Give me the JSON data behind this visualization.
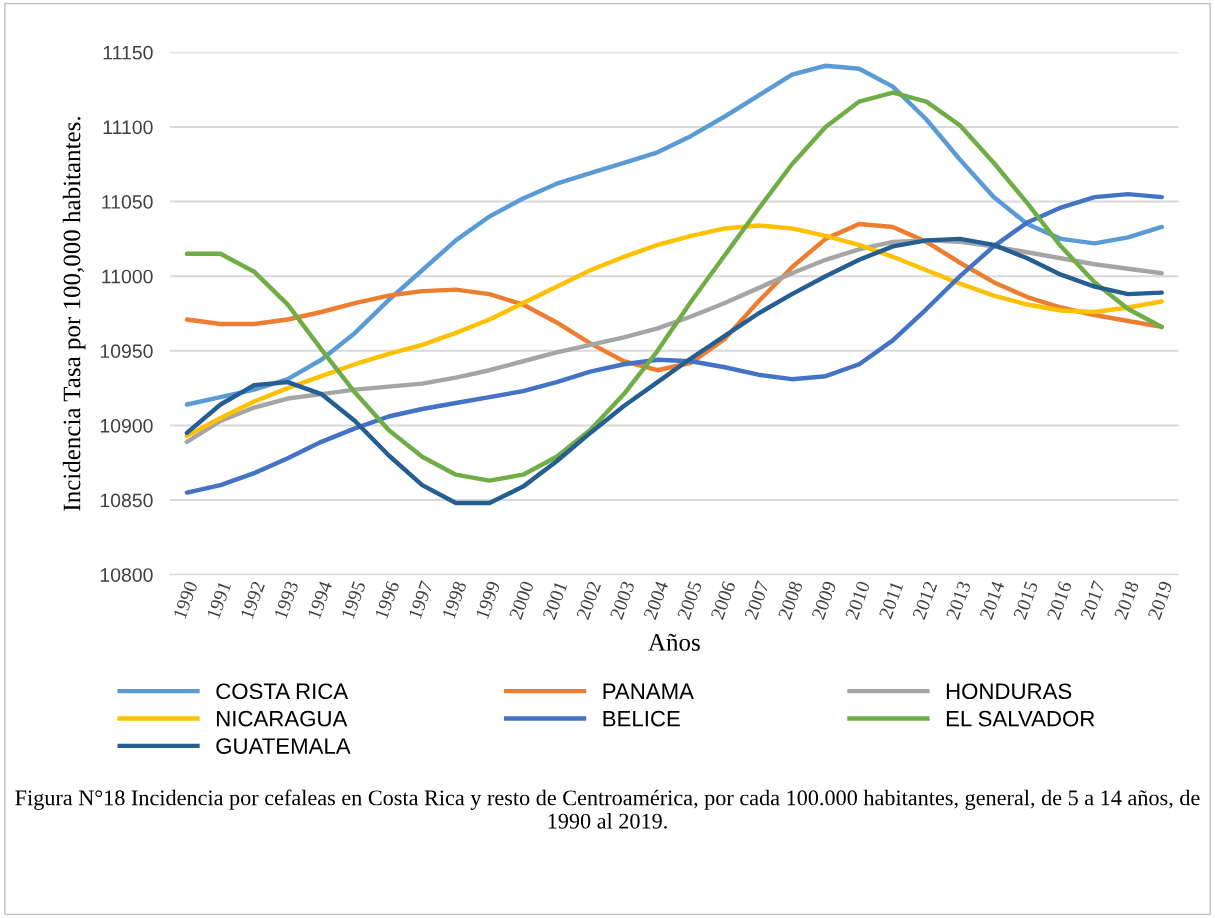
{
  "chart_data": {
    "type": "line",
    "xlabel": "Años",
    "ylabel": "Incidencia Tasa por 100,000 habitantes.",
    "categories": [
      "1990",
      "1991",
      "1992",
      "1993",
      "1994",
      "1995",
      "1996",
      "1997",
      "1998",
      "1999",
      "2000",
      "2001",
      "2002",
      "2003",
      "2004",
      "2005",
      "2006",
      "2007",
      "2008",
      "2009",
      "2010",
      "2011",
      "2012",
      "2013",
      "2014",
      "2015",
      "2016",
      "2017",
      "2018",
      "2019"
    ],
    "series": [
      {
        "name": "COSTA RICA",
        "color": "#5b9bd5",
        "values": [
          10914,
          10919,
          10924,
          10931,
          10944,
          10962,
          10984,
          11004,
          11024,
          11040,
          11052,
          11062,
          11069,
          11076,
          11083,
          11094,
          11107,
          11121,
          11135,
          11141,
          11139,
          11127,
          11105,
          11078,
          11053,
          11035,
          11025,
          11022,
          11026,
          11033
        ]
      },
      {
        "name": "PANAMA",
        "color": "#ed7d31",
        "values": [
          10971,
          10968,
          10968,
          10971,
          10976,
          10982,
          10987,
          10990,
          10991,
          10988,
          10981,
          10969,
          10955,
          10943,
          10937,
          10942,
          10958,
          10983,
          11006,
          11025,
          11035,
          11033,
          11023,
          11009,
          10996,
          10986,
          10979,
          10974,
          10970,
          10966
        ]
      },
      {
        "name": "HONDURAS",
        "color": "#a5a5a5",
        "values": [
          10889,
          10903,
          10912,
          10918,
          10921,
          10924,
          10926,
          10928,
          10932,
          10937,
          10943,
          10949,
          10954,
          10959,
          10965,
          10973,
          10982,
          10992,
          11002,
          11011,
          11018,
          11023,
          11024,
          11023,
          11020,
          11016,
          11012,
          11008,
          11005,
          11002
        ]
      },
      {
        "name": "NICARAGUA",
        "color": "#ffc000",
        "values": [
          10893,
          10905,
          10916,
          10925,
          10933,
          10941,
          10948,
          10954,
          10962,
          10971,
          10982,
          10993,
          11004,
          11013,
          11021,
          11027,
          11032,
          11034,
          11032,
          11027,
          11021,
          11013,
          11004,
          10995,
          10987,
          10981,
          10977,
          10976,
          10979,
          10983
        ]
      },
      {
        "name": "BELICE",
        "color": "#4472c4",
        "values": [
          10855,
          10860,
          10868,
          10878,
          10889,
          10898,
          10906,
          10911,
          10915,
          10919,
          10923,
          10929,
          10936,
          10941,
          10944,
          10943,
          10939,
          10934,
          10931,
          10933,
          10941,
          10957,
          10978,
          11000,
          11020,
          11036,
          11046,
          11053,
          11055,
          11053
        ]
      },
      {
        "name": "EL SALVADOR",
        "color": "#70ad47",
        "values": [
          11015,
          11015,
          11003,
          10981,
          10951,
          10922,
          10897,
          10879,
          10867,
          10863,
          10867,
          10879,
          10897,
          10921,
          10950,
          10983,
          11014,
          11045,
          11075,
          11100,
          11117,
          11123,
          11117,
          11101,
          11076,
          11049,
          11020,
          10996,
          10978,
          10966
        ]
      },
      {
        "name": "GUATEMALA",
        "color": "#255e91",
        "values": [
          10895,
          10914,
          10927,
          10929,
          10921,
          10903,
          10880,
          10860,
          10848,
          10848,
          10859,
          10876,
          10895,
          10913,
          10929,
          10945,
          10960,
          10975,
          10988,
          11000,
          11011,
          11020,
          11024,
          11025,
          11021,
          11012,
          11001,
          10993,
          10988,
          10989
        ]
      }
    ],
    "ylim": [
      10800,
      11150
    ],
    "yticks": [
      10800,
      10850,
      10900,
      10950,
      11000,
      11050,
      11100,
      11150
    ],
    "grid": "y",
    "legend": "bottom",
    "marker": "none",
    "line_style": "solid",
    "annotations": [
      "Figura N°18 Incidencia por cefaleas en Costa Rica y resto de Centroamérica, por cada 100.000 habitantes, general, de 5 a 14 años, de 1990 al 2019."
    ]
  }
}
